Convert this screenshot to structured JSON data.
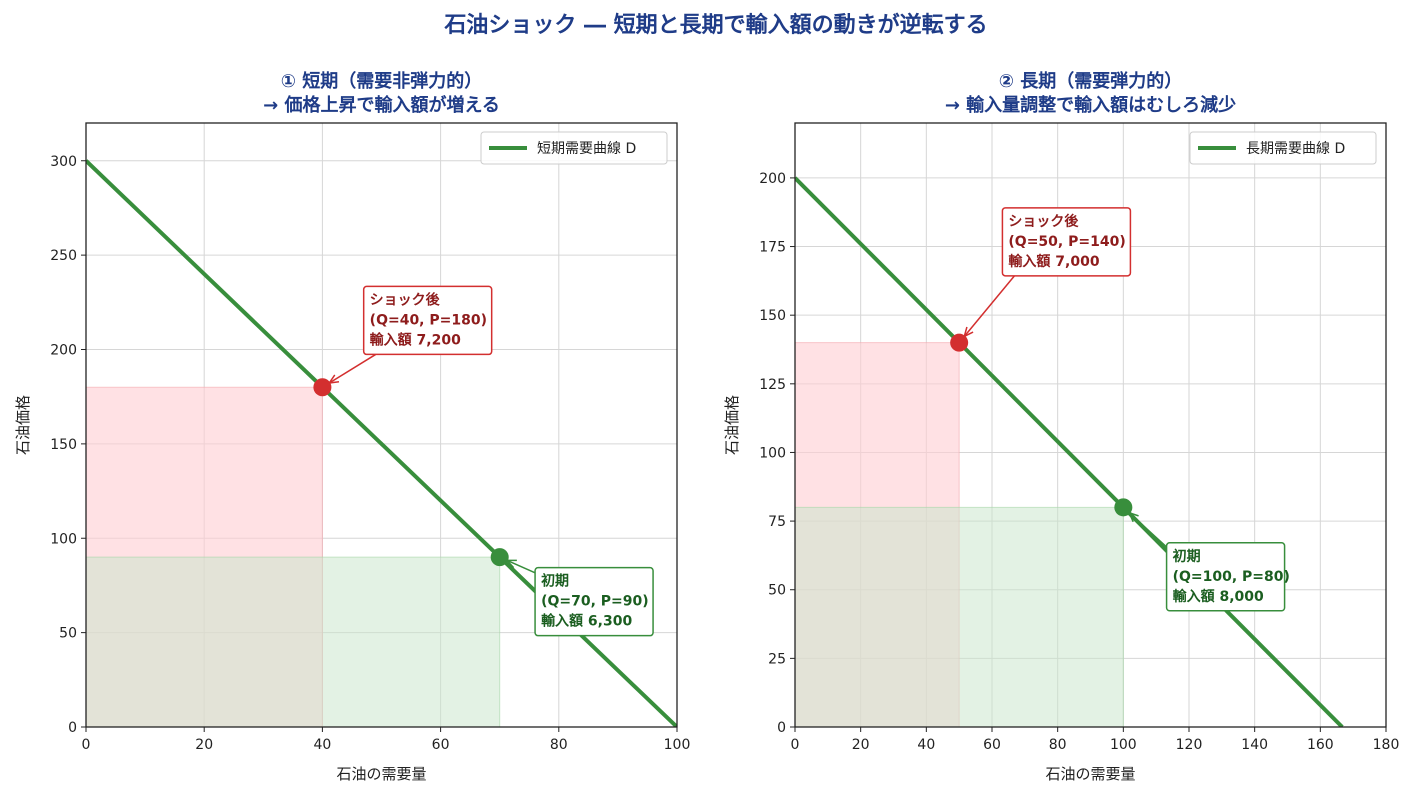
{
  "suptitle": "石油ショック ― 短期と長期で輸入額の動きが逆転する",
  "colors": {
    "title": "#1f3c88",
    "demand_line": "#388e3c",
    "after_point": "#d32f2f",
    "before_point": "#388e3c",
    "after_area": "#ffcdd2",
    "before_area": "#c8e6c9",
    "after_text": "#8e1c1c",
    "before_text": "#1b5e20"
  },
  "chart_data": [
    {
      "type": "line",
      "title_line1": "① 短期（需要非弾力的）",
      "title_line2": "→ 価格上昇で輸入額が増える",
      "xlabel": "石油の需要量",
      "ylabel": "石油価格",
      "xlim": [
        0,
        100
      ],
      "ylim": [
        0,
        320
      ],
      "xticks": [
        0,
        20,
        40,
        60,
        80,
        100
      ],
      "yticks": [
        0,
        50,
        100,
        150,
        200,
        250,
        300
      ],
      "grid": true,
      "legend": {
        "label": "短期需要曲線 D",
        "position": "top-right"
      },
      "series": [
        {
          "name": "短期需要曲線 D",
          "x": [
            0,
            100
          ],
          "y": [
            300,
            0
          ]
        }
      ],
      "points": [
        {
          "role": "before",
          "q": 70,
          "p": 90,
          "label_line1": "初期",
          "label_line2": "(Q=70, P=90)",
          "label_line3": "輸入額 6,300",
          "label_anchor": [
            77,
            77
          ]
        },
        {
          "role": "after",
          "q": 40,
          "p": 180,
          "label_line1": "ショック後",
          "label_line2": "(Q=40, P=180)",
          "label_line3": "輸入額 7,200",
          "label_anchor": [
            48,
            226
          ]
        }
      ]
    },
    {
      "type": "line",
      "title_line1": "② 長期（需要弾力的）",
      "title_line2": "→ 輸入量調整で輸入額はむしろ減少",
      "xlabel": "石油の需要量",
      "ylabel": "石油価格",
      "xlim": [
        0,
        180
      ],
      "ylim": [
        0,
        220
      ],
      "xticks": [
        0,
        20,
        40,
        60,
        80,
        100,
        120,
        140,
        160,
        180
      ],
      "yticks": [
        0,
        25,
        50,
        75,
        100,
        125,
        150,
        175,
        200
      ],
      "grid": true,
      "legend": {
        "label": "長期需要曲線 D",
        "position": "top-right"
      },
      "series": [
        {
          "name": "長期需要曲線 D",
          "x": [
            0,
            166.67
          ],
          "y": [
            200,
            0
          ]
        }
      ],
      "points": [
        {
          "role": "before",
          "q": 100,
          "p": 80,
          "label_line1": "初期",
          "label_line2": "(Q=100, P=80)",
          "label_line3": "輸入額 8,000",
          "label_anchor": [
            115,
            62
          ]
        },
        {
          "role": "after",
          "q": 50,
          "p": 140,
          "label_line1": "ショック後",
          "label_line2": "(Q=50, P=140)",
          "label_line3": "輸入額 7,000",
          "label_anchor": [
            65,
            184
          ]
        }
      ]
    }
  ]
}
